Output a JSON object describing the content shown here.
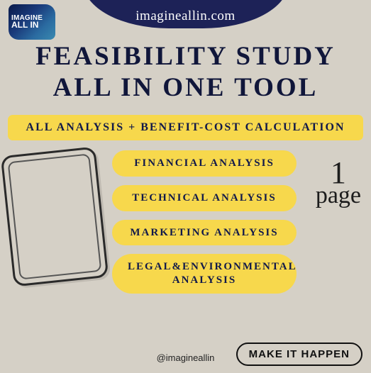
{
  "colors": {
    "background": "#d5d0c6",
    "navy": "#1d2257",
    "yellow": "#f7d84c",
    "text_dark": "#10163a"
  },
  "logo": {
    "line1": "IMAGINE",
    "line2": "ALL IN"
  },
  "header": {
    "url": "imagineallin.com"
  },
  "title": {
    "line1": "FEASIBILITY STUDY",
    "line2": "ALL IN ONE TOOL"
  },
  "banner": "ALL ANALYSIS + BENEFIT-COST CALCULATION",
  "pills": [
    "FINANCIAL ANALYSIS",
    "TECHNICAL ANALYSIS",
    "MARKETING  ANALYSIS",
    "LEGAL&ENVIRONMENTAL ANALYSIS"
  ],
  "page_note": {
    "number": "1",
    "word": "page"
  },
  "handle": "@imagineallin",
  "cta": "MAKE IT HAPPEN"
}
